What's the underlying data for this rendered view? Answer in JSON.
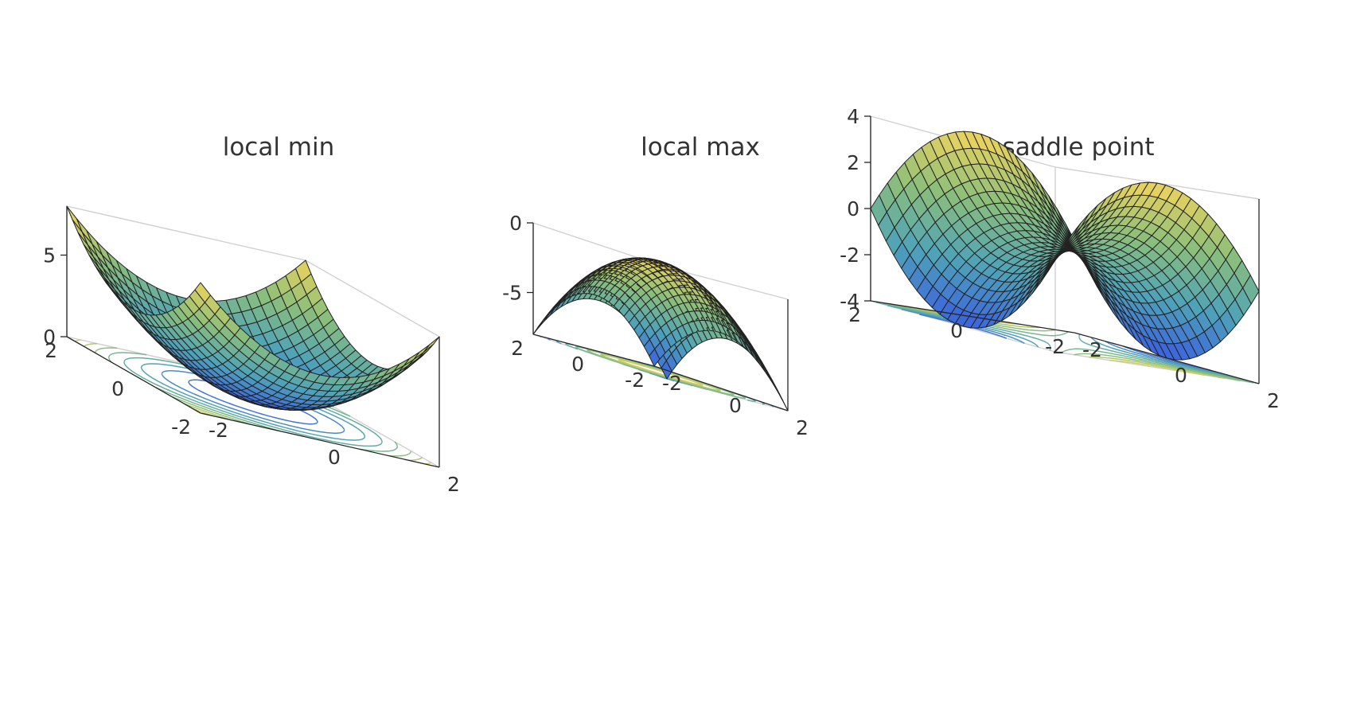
{
  "chart_data": [
    {
      "type": "surface",
      "title": "local min",
      "function": "x^2 + y^2",
      "x_range": [
        -2,
        2
      ],
      "y_range": [
        -2,
        2
      ],
      "z_range": [
        0,
        8
      ],
      "z_ticks": [
        "0",
        "5"
      ],
      "x_ticks": [
        "-2",
        "0",
        "2"
      ],
      "y_ticks": [
        "-2",
        "0",
        "2"
      ],
      "contours_on_floor": true,
      "colormap": [
        "#3a5fe0",
        "#4fa3b8",
        "#8cbf7a",
        "#f2d45c"
      ]
    },
    {
      "type": "surface",
      "title": "local max",
      "function": "-(x^2 + y^2)",
      "x_range": [
        -2,
        2
      ],
      "y_range": [
        -2,
        2
      ],
      "z_range": [
        -8,
        0
      ],
      "z_ticks": [
        "0",
        "-5"
      ],
      "x_ticks": [
        "-2",
        "0",
        "2"
      ],
      "y_ticks": [
        "-2",
        "0",
        "2"
      ],
      "contours_on_floor": true,
      "colormap": [
        "#3a5fe0",
        "#4fa3b8",
        "#8cbf7a",
        "#f2d45c"
      ]
    },
    {
      "type": "surface",
      "title": "saddle point",
      "function": "x^2 - y^2",
      "x_range": [
        -2,
        2
      ],
      "y_range": [
        -2,
        2
      ],
      "z_range": [
        -4,
        4
      ],
      "z_ticks": [
        "-4",
        "-2",
        "0",
        "2",
        "4"
      ],
      "x_ticks": [
        "-2",
        "0",
        "2"
      ],
      "y_ticks": [
        "-2",
        "0",
        "2"
      ],
      "contours_on_floor": true,
      "colormap": [
        "#3a5fe0",
        "#4fa3b8",
        "#8cbf7a",
        "#f2d45c"
      ]
    }
  ]
}
